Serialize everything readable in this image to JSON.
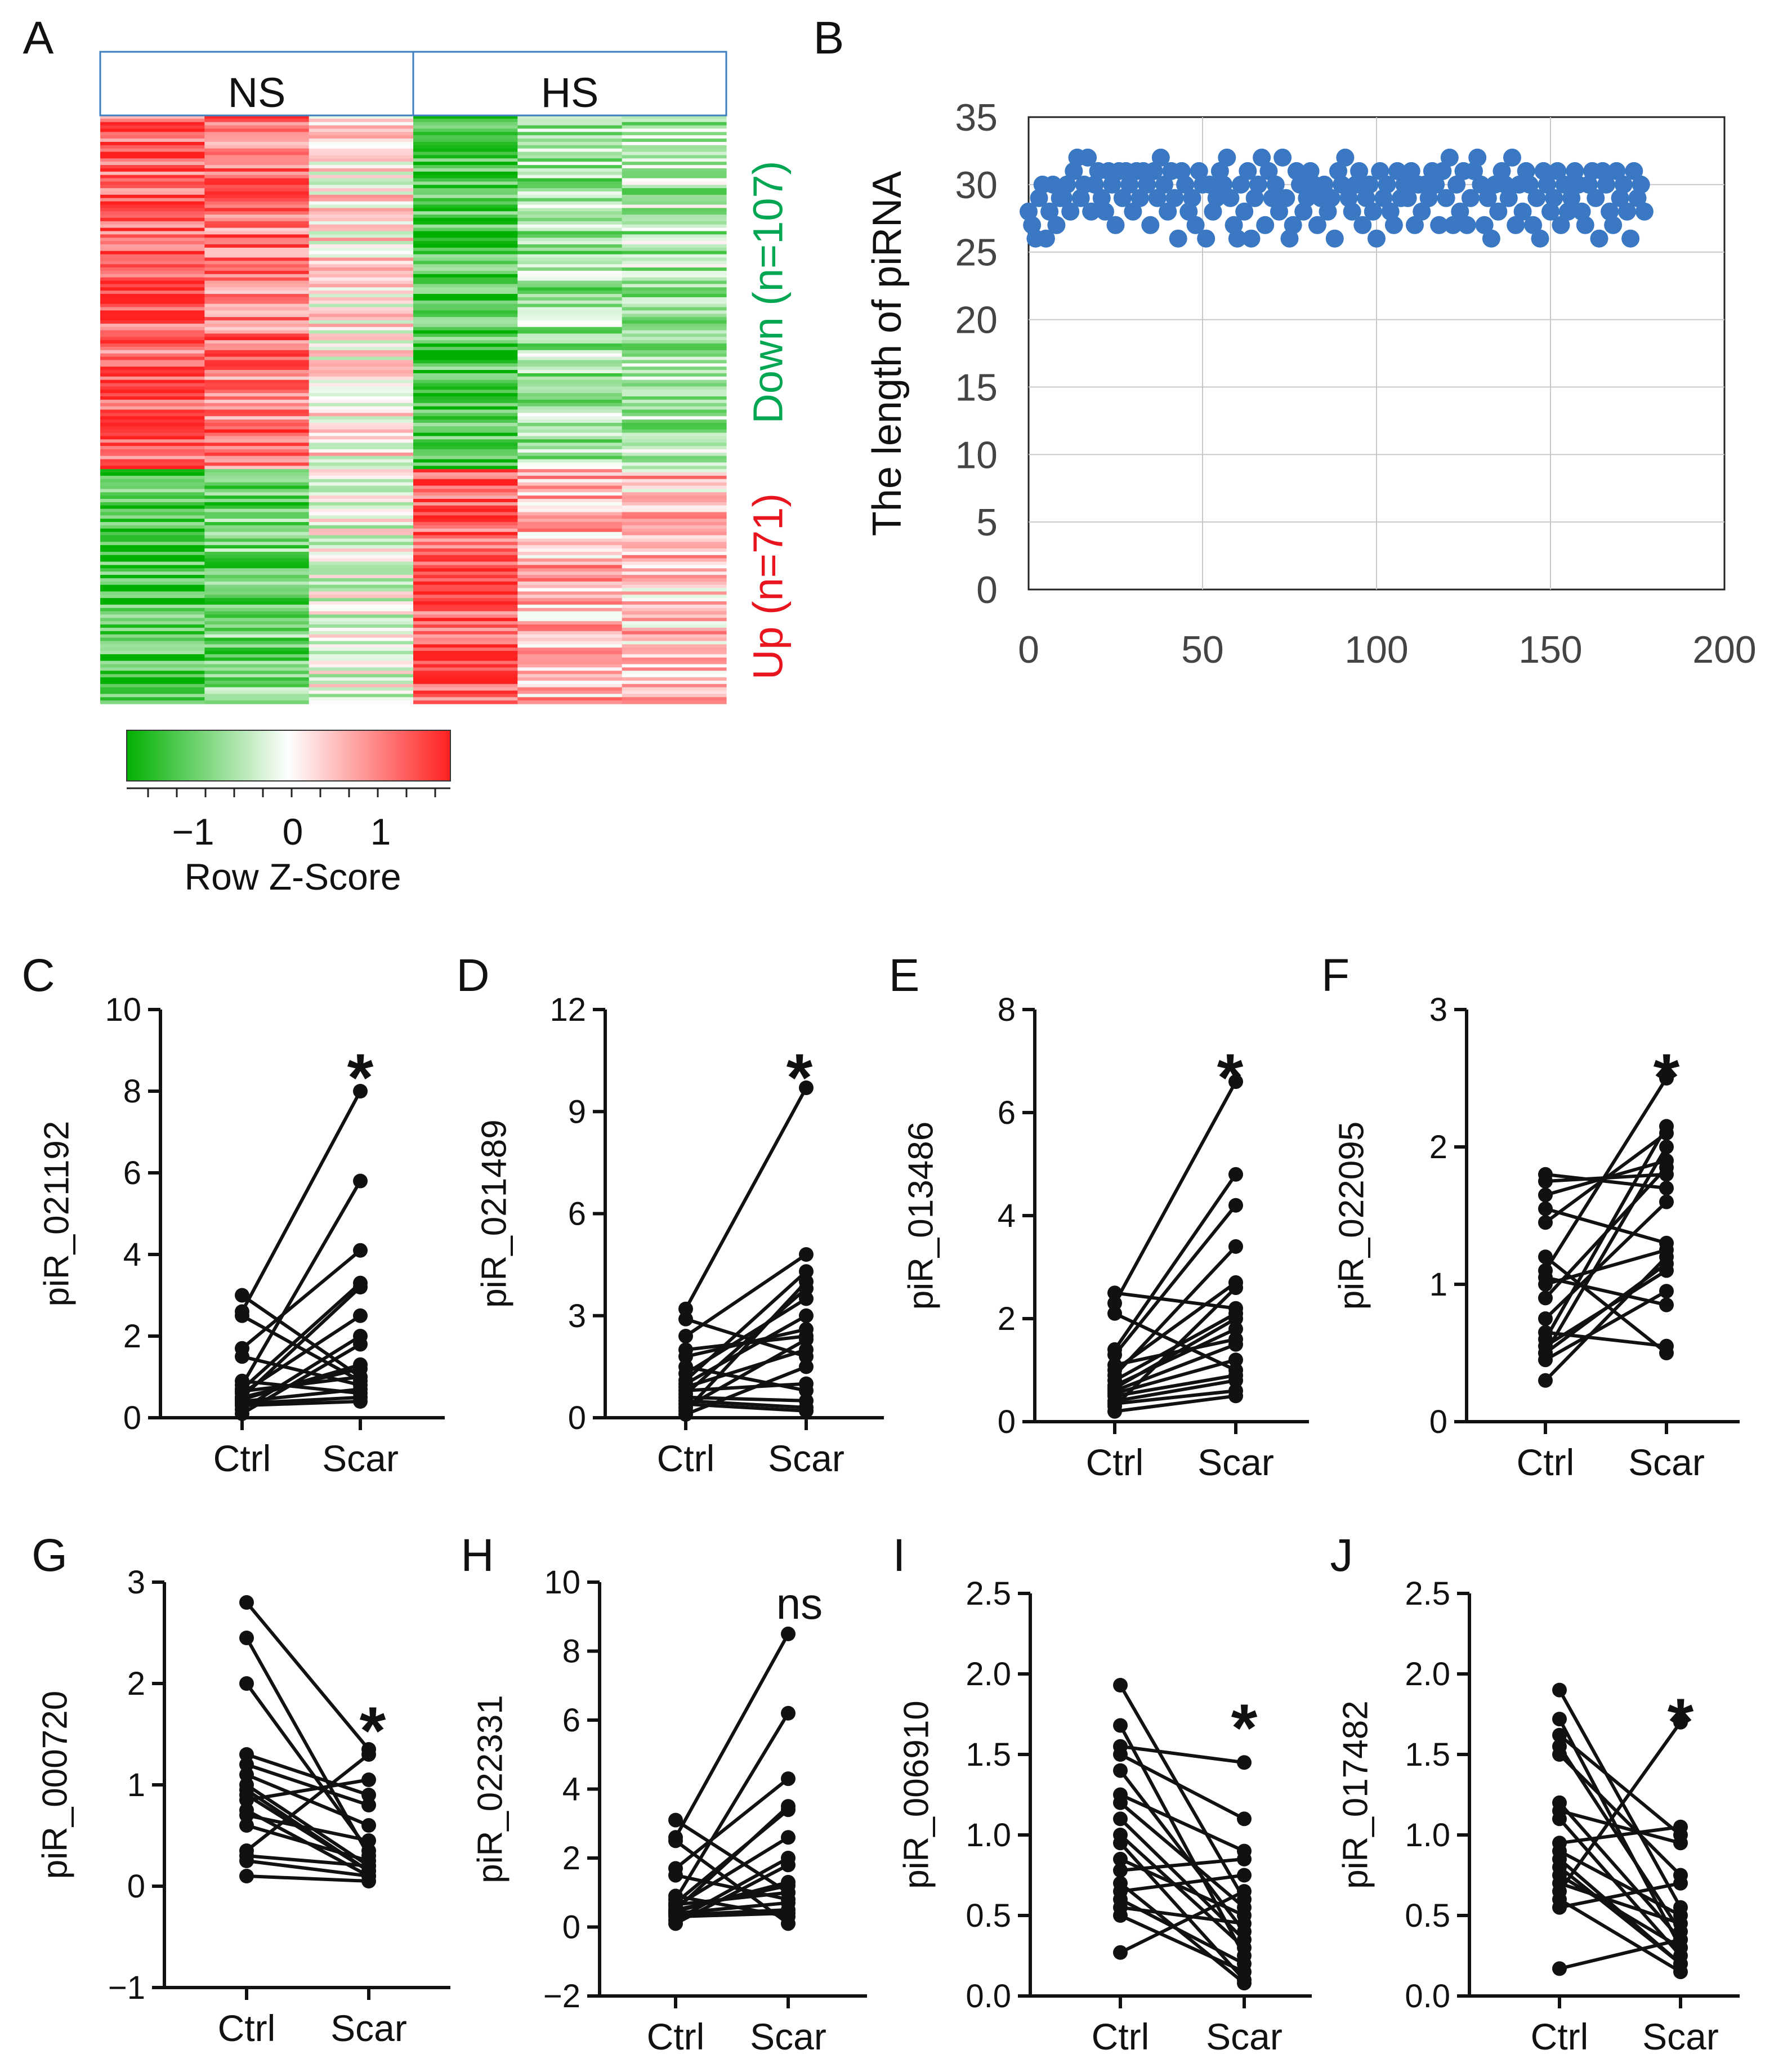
{
  "panel_letters": [
    "A",
    "B",
    "C",
    "D",
    "E",
    "F",
    "G",
    "H",
    "I",
    "J"
  ],
  "chart_data": [
    {
      "panel": "A",
      "type": "heatmap",
      "groups": [
        "NS",
        "HS"
      ],
      "columns_per_group": 3,
      "row_blocks": [
        {
          "label": "Down (n=107)",
          "n": 107,
          "color": "#00a651",
          "column_tendency": [
            1.3,
            1.1,
            0.15,
            -1.3,
            -0.7,
            -0.6
          ]
        },
        {
          "label": "Up (n=71)",
          "n": 71,
          "color": "#e8141e",
          "column_tendency": [
            -1.3,
            -1.0,
            -0.1,
            1.4,
            0.6,
            0.5
          ]
        }
      ],
      "colorbar": {
        "title": "Row Z-Score",
        "ticks": [
          "−1",
          "0",
          "1"
        ],
        "range": [
          -1.8,
          1.8
        ],
        "colors": [
          "#00b000",
          "#ffffff",
          "#ff2020"
        ]
      }
    },
    {
      "panel": "B",
      "type": "scatter",
      "ylabel": "The length of piRNA",
      "xlabel": "",
      "xlim": [
        0,
        200
      ],
      "ylim": [
        0,
        35
      ],
      "xticks": [
        "0",
        "50",
        "100",
        "150",
        "200"
      ],
      "yticks": [
        "0",
        "5",
        "10",
        "15",
        "20",
        "25",
        "30",
        "35"
      ],
      "grid": true,
      "point_color": "#3a78c4",
      "x": [
        0,
        1,
        2,
        3,
        4,
        5,
        6,
        7,
        8,
        9,
        10,
        11,
        12,
        13,
        14,
        15,
        16,
        17,
        18,
        19,
        20,
        21,
        22,
        23,
        24,
        25,
        26,
        27,
        28,
        29,
        30,
        31,
        32,
        33,
        34,
        35,
        36,
        37,
        38,
        39,
        40,
        41,
        42,
        43,
        44,
        45,
        46,
        47,
        48,
        49,
        50,
        51,
        52,
        53,
        54,
        55,
        56,
        57,
        58,
        59,
        60,
        61,
        62,
        63,
        64,
        65,
        66,
        67,
        68,
        69,
        70,
        71,
        72,
        73,
        74,
        75,
        76,
        77,
        78,
        79,
        80,
        81,
        82,
        83,
        84,
        85,
        86,
        87,
        88,
        89,
        90,
        91,
        92,
        93,
        94,
        95,
        96,
        97,
        98,
        99,
        100,
        101,
        102,
        103,
        104,
        105,
        106,
        107,
        108,
        109,
        110,
        111,
        112,
        113,
        114,
        115,
        116,
        117,
        118,
        119,
        120,
        121,
        122,
        123,
        124,
        125,
        126,
        127,
        128,
        129,
        130,
        131,
        132,
        133,
        134,
        135,
        136,
        137,
        138,
        139,
        140,
        141,
        142,
        143,
        144,
        145,
        146,
        147,
        148,
        149,
        150,
        151,
        152,
        153,
        154,
        155,
        156,
        157,
        158,
        159,
        160,
        161,
        162,
        163,
        164,
        165,
        166,
        167,
        168,
        169,
        170,
        171,
        172,
        173,
        174,
        175,
        176,
        177
      ],
      "y": [
        28,
        27,
        26,
        29,
        30,
        26,
        28,
        30,
        27,
        29,
        29,
        30,
        28,
        31,
        32,
        29,
        30,
        32,
        28,
        30,
        31,
        29,
        28,
        31,
        30,
        27,
        31,
        29,
        31,
        30,
        28,
        31,
        29,
        31,
        30,
        27,
        31,
        29,
        32,
        30,
        28,
        31,
        29,
        26,
        31,
        30,
        28,
        29,
        27,
        31,
        30,
        26,
        30,
        28,
        29,
        31,
        30,
        32,
        29,
        27,
        26,
        30,
        28,
        31,
        26,
        29,
        30,
        32,
        27,
        31,
        29,
        30,
        28,
        32,
        29,
        26,
        27,
        31,
        30,
        28,
        29,
        31,
        30,
        27,
        29,
        30,
        28,
        29,
        26,
        31,
        30,
        32,
        29,
        28,
        30,
        31,
        27,
        29,
        30,
        28,
        26,
        31,
        29,
        30,
        28,
        27,
        31,
        29,
        30,
        29,
        31,
        27,
        30,
        28,
        30,
        29,
        31,
        30,
        27,
        31,
        29,
        32,
        27,
        30,
        28,
        31,
        27,
        29,
        31,
        32,
        30,
        27,
        29,
        26,
        30,
        28,
        31,
        30,
        29,
        32,
        27,
        30,
        28,
        31,
        30,
        27,
        29,
        26,
        31,
        30,
        28,
        29,
        31,
        27,
        30,
        28,
        29,
        31,
        30,
        28,
        27,
        30,
        31,
        29,
        26,
        31,
        30,
        28,
        27,
        31,
        29,
        30,
        28,
        26,
        31,
        29,
        30,
        28
      ]
    },
    {
      "panel": "C",
      "type": "line",
      "ylabel": "piR_021192",
      "categories": [
        "Ctrl",
        "Scar"
      ],
      "ylim": [
        0,
        10
      ],
      "yticks": [
        "0",
        "2",
        "4",
        "6",
        "8",
        "10"
      ],
      "annotation": "*",
      "ctrl": [
        3.0,
        2.6,
        1.7,
        1.5,
        0.8,
        0.7,
        0.65,
        0.6,
        0.5,
        0.45,
        0.4,
        0.35,
        0.3,
        0.2,
        0.5,
        0.9,
        2.5,
        0.1
      ],
      "scar": [
        1.0,
        8.0,
        4.1,
        0.8,
        5.8,
        3.3,
        1.0,
        2.5,
        3.2,
        1.3,
        0.7,
        0.5,
        0.4,
        2.0,
        1.2,
        0.6,
        0.9,
        1.8
      ]
    },
    {
      "panel": "D",
      "type": "line",
      "ylabel": "piR_021489",
      "categories": [
        "Ctrl",
        "Scar"
      ],
      "ylim": [
        0,
        12
      ],
      "yticks": [
        "0",
        "3",
        "6",
        "9",
        "12"
      ],
      "annotation": "*",
      "ctrl": [
        3.2,
        2.9,
        2.4,
        1.8,
        1.3,
        1.1,
        1.0,
        0.9,
        0.8,
        0.6,
        0.5,
        0.4,
        0.3,
        0.2,
        0.1,
        0.7,
        1.5,
        2.0
      ],
      "scar": [
        9.7,
        1.8,
        4.8,
        2.6,
        3.5,
        4.3,
        3.0,
        2.0,
        1.0,
        0.5,
        0.3,
        0.2,
        2.3,
        4.0,
        1.5,
        3.8,
        0.8,
        2.4
      ]
    },
    {
      "panel": "E",
      "type": "line",
      "ylabel": "piR_013486",
      "categories": [
        "Ctrl",
        "Scar"
      ],
      "ylim": [
        0,
        8
      ],
      "yticks": [
        "0",
        "2",
        "4",
        "6",
        "8"
      ],
      "annotation": "*",
      "ctrl": [
        2.5,
        2.3,
        2.1,
        1.4,
        1.3,
        1.0,
        0.9,
        0.8,
        0.7,
        0.6,
        0.55,
        0.5,
        0.4,
        0.35,
        0.3,
        0.2,
        1.1,
        0.65
      ],
      "scar": [
        2.2,
        6.6,
        1.0,
        4.8,
        4.2,
        2.7,
        3.4,
        2.1,
        1.8,
        1.5,
        1.2,
        0.9,
        0.8,
        0.6,
        2.6,
        0.5,
        1.6,
        2.0
      ]
    },
    {
      "panel": "F",
      "type": "line",
      "ylabel": "piR_022095",
      "categories": [
        "Ctrl",
        "Scar"
      ],
      "ylim": [
        0,
        3
      ],
      "yticks": [
        "0",
        "1",
        "2",
        "3"
      ],
      "annotation": "*",
      "ctrl": [
        1.8,
        1.65,
        1.45,
        1.1,
        1.05,
        1.0,
        0.75,
        0.65,
        0.55,
        0.5,
        0.45,
        0.3,
        1.55,
        1.2,
        0.6,
        0.9,
        1.75,
        0.5
      ],
      "scar": [
        1.7,
        1.9,
        2.1,
        2.5,
        0.85,
        1.25,
        1.6,
        0.55,
        1.1,
        2.0,
        0.95,
        1.2,
        1.3,
        0.5,
        2.15,
        1.85,
        1.8,
        1.15
      ]
    },
    {
      "panel": "G",
      "type": "line",
      "ylabel": "piR_000720",
      "categories": [
        "Ctrl",
        "Scar"
      ],
      "ylim": [
        -1,
        3
      ],
      "yticks": [
        "−1",
        "0",
        "1",
        "2",
        "3"
      ],
      "annotation": "*",
      "ctrl": [
        2.8,
        2.45,
        2.0,
        1.3,
        1.1,
        1.0,
        0.95,
        0.85,
        0.75,
        0.7,
        0.6,
        0.35,
        0.3,
        0.25,
        0.1,
        0.9,
        1.2
      ],
      "scar": [
        1.35,
        0.3,
        0.35,
        0.9,
        0.6,
        0.2,
        0.15,
        1.05,
        0.1,
        0.45,
        0.25,
        1.3,
        0.2,
        0.1,
        0.05,
        0.15,
        0.8
      ]
    },
    {
      "panel": "H",
      "type": "line",
      "ylabel": "piR_022331",
      "categories": [
        "Ctrl",
        "Scar"
      ],
      "ylim": [
        -2,
        10
      ],
      "yticks": [
        "−2",
        "0",
        "2",
        "4",
        "6",
        "8",
        "10"
      ],
      "annotation": "ns",
      "ctrl": [
        3.1,
        2.6,
        1.7,
        1.5,
        0.8,
        0.7,
        0.65,
        0.6,
        0.5,
        0.45,
        0.4,
        0.35,
        0.3,
        0.2,
        0.5,
        0.9,
        2.5,
        0.1
      ],
      "scar": [
        1.0,
        8.5,
        4.3,
        0.8,
        6.2,
        3.4,
        1.0,
        2.6,
        3.5,
        1.3,
        0.7,
        0.5,
        0.4,
        2.0,
        1.2,
        0.3,
        0.1,
        1.8
      ]
    },
    {
      "panel": "I",
      "type": "line",
      "ylabel": "piR_006910",
      "categories": [
        "Ctrl",
        "Scar"
      ],
      "ylim": [
        0,
        2.5
      ],
      "yticks": [
        "0.0",
        "0.5",
        "1.0",
        "1.5",
        "2.0",
        "2.5"
      ],
      "annotation": "*",
      "ctrl": [
        1.93,
        1.68,
        1.55,
        1.5,
        1.25,
        1.2,
        1.0,
        0.95,
        0.78,
        0.65,
        0.6,
        0.55,
        0.5,
        0.27,
        1.1,
        0.85,
        0.7,
        1.4
      ],
      "scar": [
        0.6,
        0.25,
        1.45,
        1.1,
        0.9,
        0.55,
        0.3,
        0.1,
        0.85,
        0.75,
        0.2,
        0.45,
        0.15,
        0.65,
        0.35,
        0.5,
        0.08,
        0.4
      ]
    },
    {
      "panel": "J",
      "type": "line",
      "ylabel": "piR_017482",
      "categories": [
        "Ctrl",
        "Scar"
      ],
      "ylim": [
        0,
        2.5
      ],
      "yticks": [
        "0.0",
        "0.5",
        "1.0",
        "1.5",
        "2.0",
        "2.5"
      ],
      "annotation": "*",
      "ctrl": [
        1.9,
        1.72,
        1.62,
        1.5,
        1.2,
        1.1,
        0.95,
        0.9,
        0.85,
        0.75,
        0.7,
        0.65,
        0.6,
        0.55,
        0.17,
        1.15,
        0.8,
        1.55
      ],
      "scar": [
        0.55,
        0.3,
        1.0,
        0.75,
        0.35,
        0.25,
        1.05,
        0.5,
        0.2,
        0.3,
        0.45,
        1.7,
        0.15,
        0.7,
        0.35,
        0.95,
        0.2,
        0.4
      ]
    }
  ]
}
